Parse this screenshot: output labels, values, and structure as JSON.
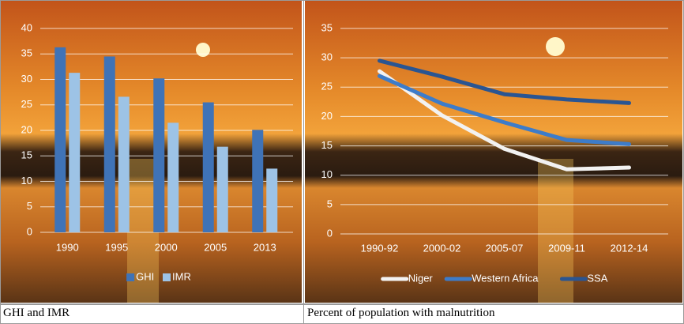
{
  "chart_data": [
    {
      "type": "bar",
      "categories": [
        "1990",
        "1995",
        "2000",
        "2005",
        "2013"
      ],
      "series": [
        {
          "name": "GHI",
          "color": "#3f73b7",
          "values": [
            36.3,
            34.5,
            30.2,
            25.5,
            20.1
          ]
        },
        {
          "name": "IMR",
          "color": "#9dc3e6",
          "values": [
            31.3,
            26.6,
            21.5,
            16.8,
            12.5
          ]
        }
      ],
      "ylim": [
        0,
        40
      ],
      "yticks": [
        0,
        5,
        10,
        15,
        20,
        25,
        30,
        35,
        40
      ],
      "grid": true,
      "legend": "bottom",
      "caption": "GHI and IMR"
    },
    {
      "type": "line",
      "categories": [
        "1990-92",
        "2000-02",
        "2005-07",
        "2009-11",
        "2012-14"
      ],
      "series": [
        {
          "name": "Niger",
          "color": "#f2f2f2",
          "values": [
            27.7,
            20.2,
            14.5,
            11.0,
            11.3
          ]
        },
        {
          "name": "Western Africa",
          "color": "#3d7cc9",
          "values": [
            26.9,
            22.2,
            19.0,
            16.0,
            15.3
          ]
        },
        {
          "name": "SSA",
          "color": "#2a5592",
          "values": [
            29.5,
            26.8,
            23.8,
            22.9,
            22.3
          ]
        }
      ],
      "ylim": [
        0,
        35
      ],
      "yticks": [
        0,
        5,
        10,
        15,
        20,
        25,
        30,
        35
      ],
      "grid": true,
      "legend": "bottom",
      "caption": "Percent of population with malnutrition"
    }
  ]
}
